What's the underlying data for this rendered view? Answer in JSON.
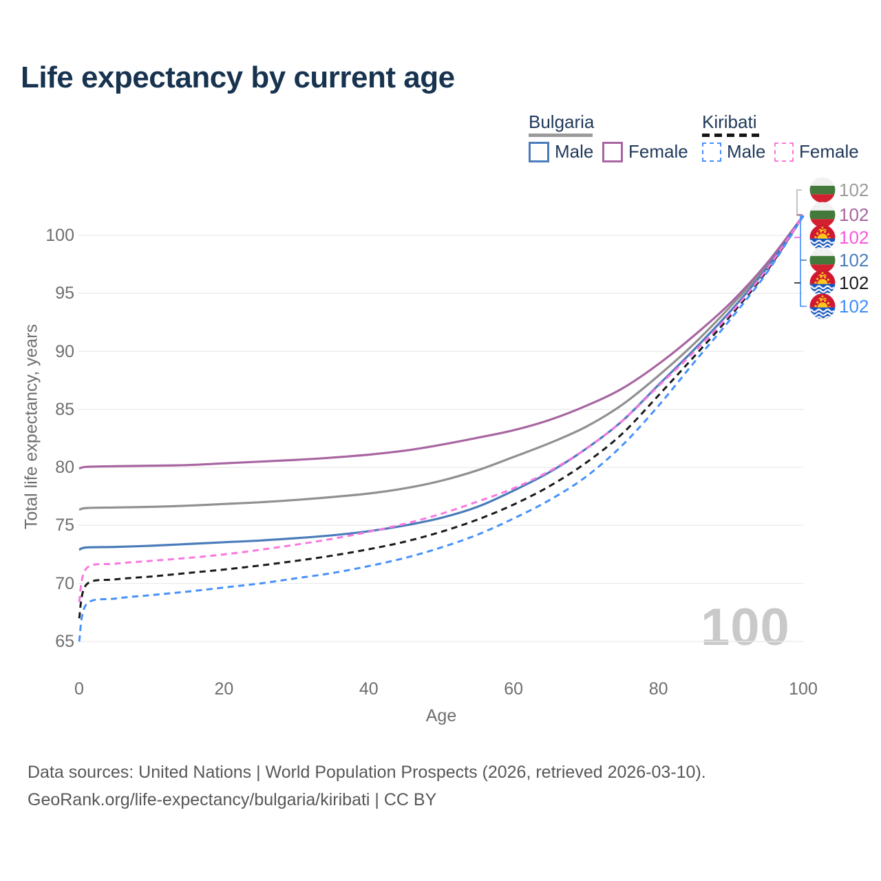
{
  "title": "Life expectancy by current age",
  "legend": {
    "groups": [
      {
        "label": "Bulgaria",
        "line_style": "solid",
        "underline_color": "#9a9a9a",
        "items": [
          {
            "label": "Male",
            "color": "#4a7cba",
            "dashed": false
          },
          {
            "label": "Female",
            "color": "#a765a1",
            "dashed": false
          }
        ]
      },
      {
        "label": "Kiribati",
        "line_style": "dashed",
        "underline_color": "#151515",
        "items": [
          {
            "label": "Male",
            "color": "#4791fb",
            "dashed": true
          },
          {
            "label": "Female",
            "color": "#f878e0",
            "dashed": true
          }
        ]
      }
    ]
  },
  "axes": {
    "x_label": "Age",
    "y_label": "Total life expectancy, years",
    "x_ticks": [
      "0",
      "20",
      "40",
      "60",
      "80",
      "100"
    ],
    "y_ticks": [
      "65",
      "70",
      "75",
      "80",
      "85",
      "90",
      "95",
      "100"
    ]
  },
  "chart_data": {
    "type": "line",
    "title": "Life expectancy by current age",
    "xlabel": "Age",
    "ylabel": "Total life expectancy, years",
    "xlim": [
      0,
      100
    ],
    "ylim": [
      63.5,
      103
    ],
    "xticks": [
      0,
      20,
      40,
      60,
      80,
      100
    ],
    "yticks": [
      65,
      70,
      75,
      80,
      85,
      90,
      95,
      100
    ],
    "grid": "horizontal",
    "legend_position": "top-right",
    "watermark": "100",
    "x": [
      0,
      1,
      5,
      10,
      15,
      20,
      25,
      30,
      35,
      40,
      45,
      50,
      55,
      60,
      65,
      70,
      75,
      80,
      85,
      90,
      95,
      100
    ],
    "series": [
      {
        "name": "Bulgaria Total",
        "country": "Bulgaria",
        "sex": "Both",
        "color": "#909090",
        "dash": false,
        "end_label": "102",
        "values": [
          76.35,
          76.5,
          76.55,
          76.6,
          76.7,
          76.85,
          77.0,
          77.2,
          77.45,
          77.75,
          78.2,
          78.85,
          79.75,
          80.9,
          82.1,
          83.5,
          85.4,
          87.9,
          90.7,
          93.9,
          97.4,
          101.7
        ]
      },
      {
        "name": "Bulgaria Female",
        "country": "Bulgaria",
        "sex": "Female",
        "color": "#a765a1",
        "dash": false,
        "end_label": "102",
        "values": [
          79.9,
          80.05,
          80.1,
          80.15,
          80.2,
          80.35,
          80.5,
          80.65,
          80.85,
          81.1,
          81.45,
          81.95,
          82.55,
          83.2,
          84.1,
          85.3,
          86.8,
          88.9,
          91.4,
          94.2,
          97.6,
          101.7
        ]
      },
      {
        "name": "Bulgaria Male",
        "country": "Bulgaria",
        "sex": "Male",
        "color": "#4a7cba",
        "dash": false,
        "end_label": "102",
        "values": [
          72.9,
          73.1,
          73.15,
          73.25,
          73.4,
          73.55,
          73.7,
          73.9,
          74.15,
          74.5,
          75.0,
          75.65,
          76.6,
          78.0,
          79.6,
          81.6,
          84.0,
          87.1,
          90.2,
          93.5,
          97.2,
          101.7
        ]
      },
      {
        "name": "Kiribati Total",
        "country": "Kiribati",
        "sex": "Both",
        "color": "#1a1a1a",
        "dash": true,
        "end_label": "102",
        "values": [
          67.0,
          69.9,
          70.35,
          70.6,
          70.9,
          71.2,
          71.55,
          71.95,
          72.4,
          72.95,
          73.6,
          74.45,
          75.5,
          76.8,
          78.4,
          80.4,
          82.9,
          86.2,
          89.6,
          93.1,
          96.95,
          101.7
        ]
      },
      {
        "name": "Kiribati Male",
        "country": "Kiribati",
        "sex": "Male",
        "color": "#4791fb",
        "dash": true,
        "end_label": "102",
        "values": [
          65.0,
          68.2,
          68.7,
          69.0,
          69.3,
          69.65,
          70.0,
          70.45,
          70.9,
          71.5,
          72.2,
          73.1,
          74.2,
          75.6,
          77.2,
          79.2,
          81.9,
          85.3,
          89.1,
          92.8,
          96.8,
          101.65
        ]
      },
      {
        "name": "Kiribati Female",
        "country": "Kiribati",
        "sex": "Female",
        "color": "#f878e0",
        "dash": true,
        "end_label": "102",
        "values": [
          68.4,
          71.3,
          71.7,
          71.95,
          72.2,
          72.5,
          72.9,
          73.35,
          73.85,
          74.45,
          75.15,
          76.0,
          77.05,
          78.2,
          79.7,
          81.6,
          84.0,
          87.0,
          90.0,
          93.3,
          97.1,
          101.7
        ]
      }
    ]
  },
  "endpoints": [
    {
      "flag": "bulgaria",
      "value": "102",
      "color": "#9c9c9c"
    },
    {
      "flag": "bulgaria",
      "value": "102",
      "color": "#a765a1"
    },
    {
      "flag": "kiribati",
      "value": "102",
      "color": "#f957dd"
    },
    {
      "flag": "bulgaria",
      "value": "102",
      "color": "#4a7cba"
    },
    {
      "flag": "kiribati",
      "value": "102",
      "color": "#1a1a1a"
    },
    {
      "flag": "kiribati",
      "value": "102",
      "color": "#3f8cfb"
    }
  ],
  "footer": {
    "line1": "Data sources: United Nations | World Population Prospects (2026, retrieved 2026-03-10).",
    "line2": "GeoRank.org/life-expectancy/bulgaria/kiribati | CC BY"
  },
  "colors": {
    "title_text": "#17334f",
    "axis_text": "#6e6e6e",
    "gridline": "#ebebeb",
    "watermark": "#c9c9c9",
    "footer_text": "#575757"
  }
}
